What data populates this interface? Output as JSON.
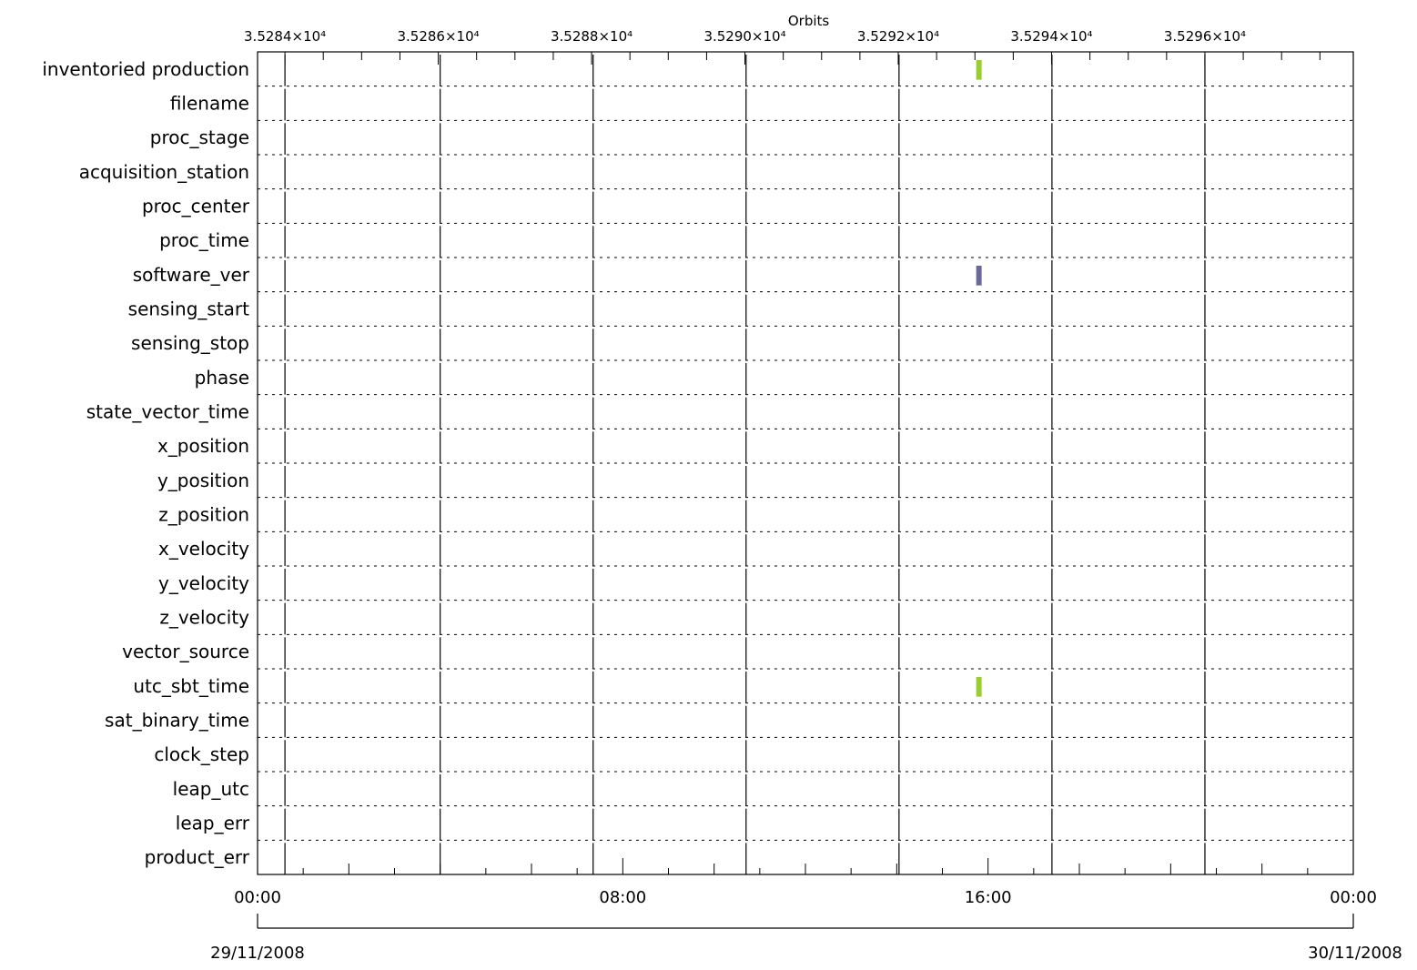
{
  "chart_data": {
    "type": "timeline",
    "top_axis": {
      "label": "Orbits",
      "tick_labels": [
        "3.5284×10⁴",
        "3.5286×10⁴",
        "3.5288×10⁴",
        "3.5290×10⁴",
        "3.5292×10⁴",
        "3.5294×10⁴",
        "3.5296×10⁴"
      ],
      "tick_values": [
        35284,
        35286,
        35288,
        35290,
        35292,
        35294,
        35296
      ]
    },
    "bottom_axis": {
      "tick_labels": [
        "00:00",
        "08:00",
        "16:00",
        "00:00"
      ],
      "tick_hours": [
        0,
        8,
        16,
        24
      ],
      "start_date": "29/11/2008",
      "end_date": "30/11/2008"
    },
    "x_range_hours": [
      0,
      24
    ],
    "orbit_boundaries_hours": [
      0.6,
      4.0,
      7.35,
      10.7,
      14.05,
      17.4,
      20.75
    ],
    "categories": [
      "inventoried production",
      "filename",
      "proc_stage",
      "acquisition_station",
      "proc_center",
      "proc_time",
      "software_ver",
      "sensing_start",
      "sensing_stop",
      "phase",
      "state_vector_time",
      "x_position",
      "y_position",
      "z_position",
      "x_velocity",
      "y_velocity",
      "z_velocity",
      "vector_source",
      "utc_sbt_time",
      "sat_binary_time",
      "clock_step",
      "leap_utc",
      "leap_err",
      "product_err"
    ],
    "events": [
      {
        "row": "inventoried production",
        "hour": 15.8,
        "color": "#9acd32"
      },
      {
        "row": "software_ver",
        "hour": 15.8,
        "color": "#6a6a99"
      },
      {
        "row": "utc_sbt_time",
        "hour": 15.8,
        "color": "#9acd32"
      }
    ],
    "grid": true
  }
}
